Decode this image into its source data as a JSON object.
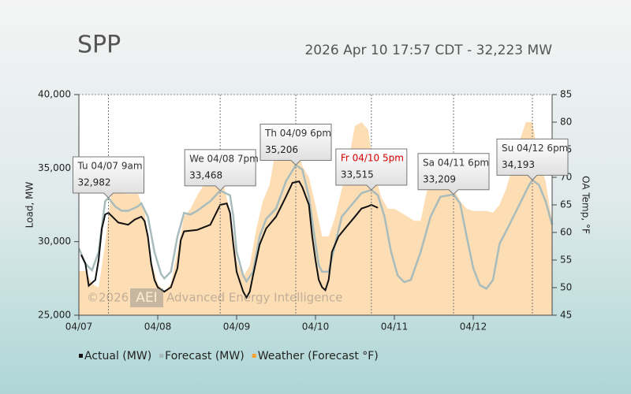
{
  "chart_data": {
    "type": "line",
    "title": "SPP",
    "subtitle": "2026 Apr 10 17:57 CDT - 32,223 MW",
    "watermark": [
      "©2026",
      "AEI",
      "Advanced Energy Intelligence"
    ],
    "ylabel": "Load, MW",
    "y2label": "OA Temp, °F",
    "xlim": [
      0,
      144
    ],
    "xticks": [
      {
        "value": 0,
        "label": "04/07"
      },
      {
        "value": 24,
        "label": "04/08"
      },
      {
        "value": 48,
        "label": "04/09"
      },
      {
        "value": 72,
        "label": "04/10"
      },
      {
        "value": 96,
        "label": "04/11"
      },
      {
        "value": 120,
        "label": "04/12"
      }
    ],
    "ylim": [
      25000,
      40000
    ],
    "yticks": [
      {
        "value": 25000,
        "label": "25,000"
      },
      {
        "value": 30000,
        "label": "30,000"
      },
      {
        "value": 35000,
        "label": "35,000"
      },
      {
        "value": 40000,
        "label": "40,000"
      }
    ],
    "y2lim": [
      45,
      85
    ],
    "y2ticks": [
      45,
      50,
      55,
      60,
      65,
      70,
      75,
      80,
      85
    ],
    "legend": "bottom",
    "series": [
      {
        "name": "Weather (Forecast °F)",
        "color": "#fdddb4",
        "legend_color": "#f7a030",
        "style": "area",
        "axis": "y2",
        "x": [
          0,
          2,
          4,
          6,
          8,
          10,
          12,
          14,
          16,
          18,
          20,
          22,
          24,
          26,
          28,
          30,
          32,
          34,
          36,
          38,
          40,
          42,
          44,
          46,
          48,
          50,
          52,
          54,
          56,
          58,
          61,
          62,
          64,
          66,
          68,
          70,
          72,
          74,
          76,
          78,
          80,
          82,
          84,
          86,
          88,
          90,
          92,
          94,
          96,
          98,
          100,
          102,
          104,
          106,
          108,
          110,
          112,
          114,
          116,
          118,
          120,
          122,
          124,
          126,
          128,
          130,
          132,
          134,
          136,
          138,
          140,
          142,
          144
        ],
        "values": [
          53,
          53,
          50.7,
          50,
          58,
          67.9,
          68,
          67,
          67,
          67,
          63.6,
          55,
          50.7,
          49.3,
          50.7,
          56.7,
          62.9,
          64.3,
          66.7,
          68.6,
          69,
          69,
          68.6,
          63.9,
          55,
          52,
          54,
          60.7,
          65.7,
          68.6,
          78.6,
          79.3,
          79,
          76.4,
          72,
          70,
          65,
          59.3,
          59.3,
          62.9,
          67.9,
          72.9,
          79.3,
          80,
          78.6,
          70.7,
          66.4,
          64.3,
          64.3,
          63.6,
          62.9,
          62.1,
          62.1,
          67.9,
          70,
          70,
          69.3,
          68.1,
          65.7,
          64.3,
          63.9,
          63.9,
          63.9,
          63.6,
          65,
          67.9,
          72,
          76.4,
          80,
          80,
          72.9,
          69.3,
          62.1
        ]
      },
      {
        "name": "Forecast (MW)",
        "color": "#a9bcbc",
        "style": "line",
        "x": [
          0,
          2,
          4,
          6,
          8,
          9,
          11,
          13,
          15,
          18,
          19,
          21,
          23,
          25,
          26,
          28,
          30,
          32,
          34,
          36,
          40,
          43,
          46,
          47,
          48,
          50,
          51,
          53,
          55,
          57,
          60,
          63,
          66,
          68,
          70,
          72,
          73,
          74,
          76,
          78,
          80,
          83,
          86,
          89,
          91,
          93,
          95,
          97,
          99,
          101,
          104,
          107,
          110,
          114,
          116,
          118,
          120,
          122,
          124,
          126,
          128,
          131,
          134,
          137,
          138,
          140,
          142,
          144
        ],
        "values": [
          29550,
          28500,
          28050,
          29300,
          32750,
          32982,
          32400,
          32100,
          32100,
          32400,
          32600,
          31700,
          29300,
          27800,
          27500,
          27950,
          30350,
          31950,
          31850,
          32100,
          32750,
          33468,
          33150,
          31700,
          29300,
          27700,
          27300,
          27950,
          30350,
          31550,
          32250,
          34100,
          35206,
          34900,
          33050,
          29850,
          28400,
          27950,
          27950,
          29850,
          31700,
          32500,
          33300,
          33515,
          33150,
          31700,
          29300,
          27700,
          27250,
          27400,
          29300,
          31700,
          33050,
          33209,
          32600,
          30350,
          28200,
          27050,
          26800,
          27400,
          29850,
          31150,
          32500,
          33850,
          34193,
          33850,
          32750,
          31150
        ]
      },
      {
        "name": "Actual (MW)",
        "color": "#111111",
        "style": "line",
        "x": [
          0.7,
          2,
          3,
          5,
          6,
          7,
          8,
          9,
          12,
          15,
          17,
          19,
          20,
          21,
          22,
          23,
          24,
          26,
          28,
          30,
          31,
          32,
          36,
          40,
          43,
          45,
          46,
          47,
          48,
          50,
          51,
          52,
          53,
          55,
          57,
          60,
          63,
          65,
          67,
          68,
          70,
          71,
          72,
          73,
          74,
          75,
          76,
          77,
          79,
          81,
          84,
          86,
          88,
          89,
          90,
          91
        ],
        "values": [
          29100,
          28500,
          27000,
          27400,
          28750,
          30900,
          31850,
          31960,
          31300,
          31150,
          31500,
          31700,
          31400,
          30350,
          28500,
          27400,
          26900,
          26600,
          26900,
          28200,
          30100,
          30700,
          30800,
          31150,
          32500,
          32600,
          31960,
          29800,
          27950,
          26600,
          26200,
          26600,
          27700,
          29800,
          30900,
          31700,
          33050,
          34000,
          34100,
          33700,
          32500,
          30350,
          28750,
          27400,
          26900,
          26700,
          27400,
          29300,
          30350,
          30900,
          31700,
          32250,
          32400,
          32500,
          32400,
          32300
        ]
      }
    ],
    "annotations": [
      {
        "x": 9,
        "label": "Tu 04/07 9am",
        "value": 32982,
        "value_label": "32,982"
      },
      {
        "x": 43,
        "label": "We 04/08 7pm",
        "value": 33468,
        "value_label": "33,468"
      },
      {
        "x": 66,
        "label": "Th 04/09 6pm",
        "value": 35206,
        "value_label": "35,206"
      },
      {
        "x": 89,
        "label": "Fr 04/10 5pm",
        "value": 33515,
        "value_label": "33,515",
        "color": "#d40000"
      },
      {
        "x": 114,
        "label": "Sa 04/11 6pm",
        "value": 33209,
        "value_label": "33,209"
      },
      {
        "x": 138,
        "label": "Su 04/12 6pm",
        "value": 34193,
        "value_label": "34,193"
      }
    ]
  }
}
